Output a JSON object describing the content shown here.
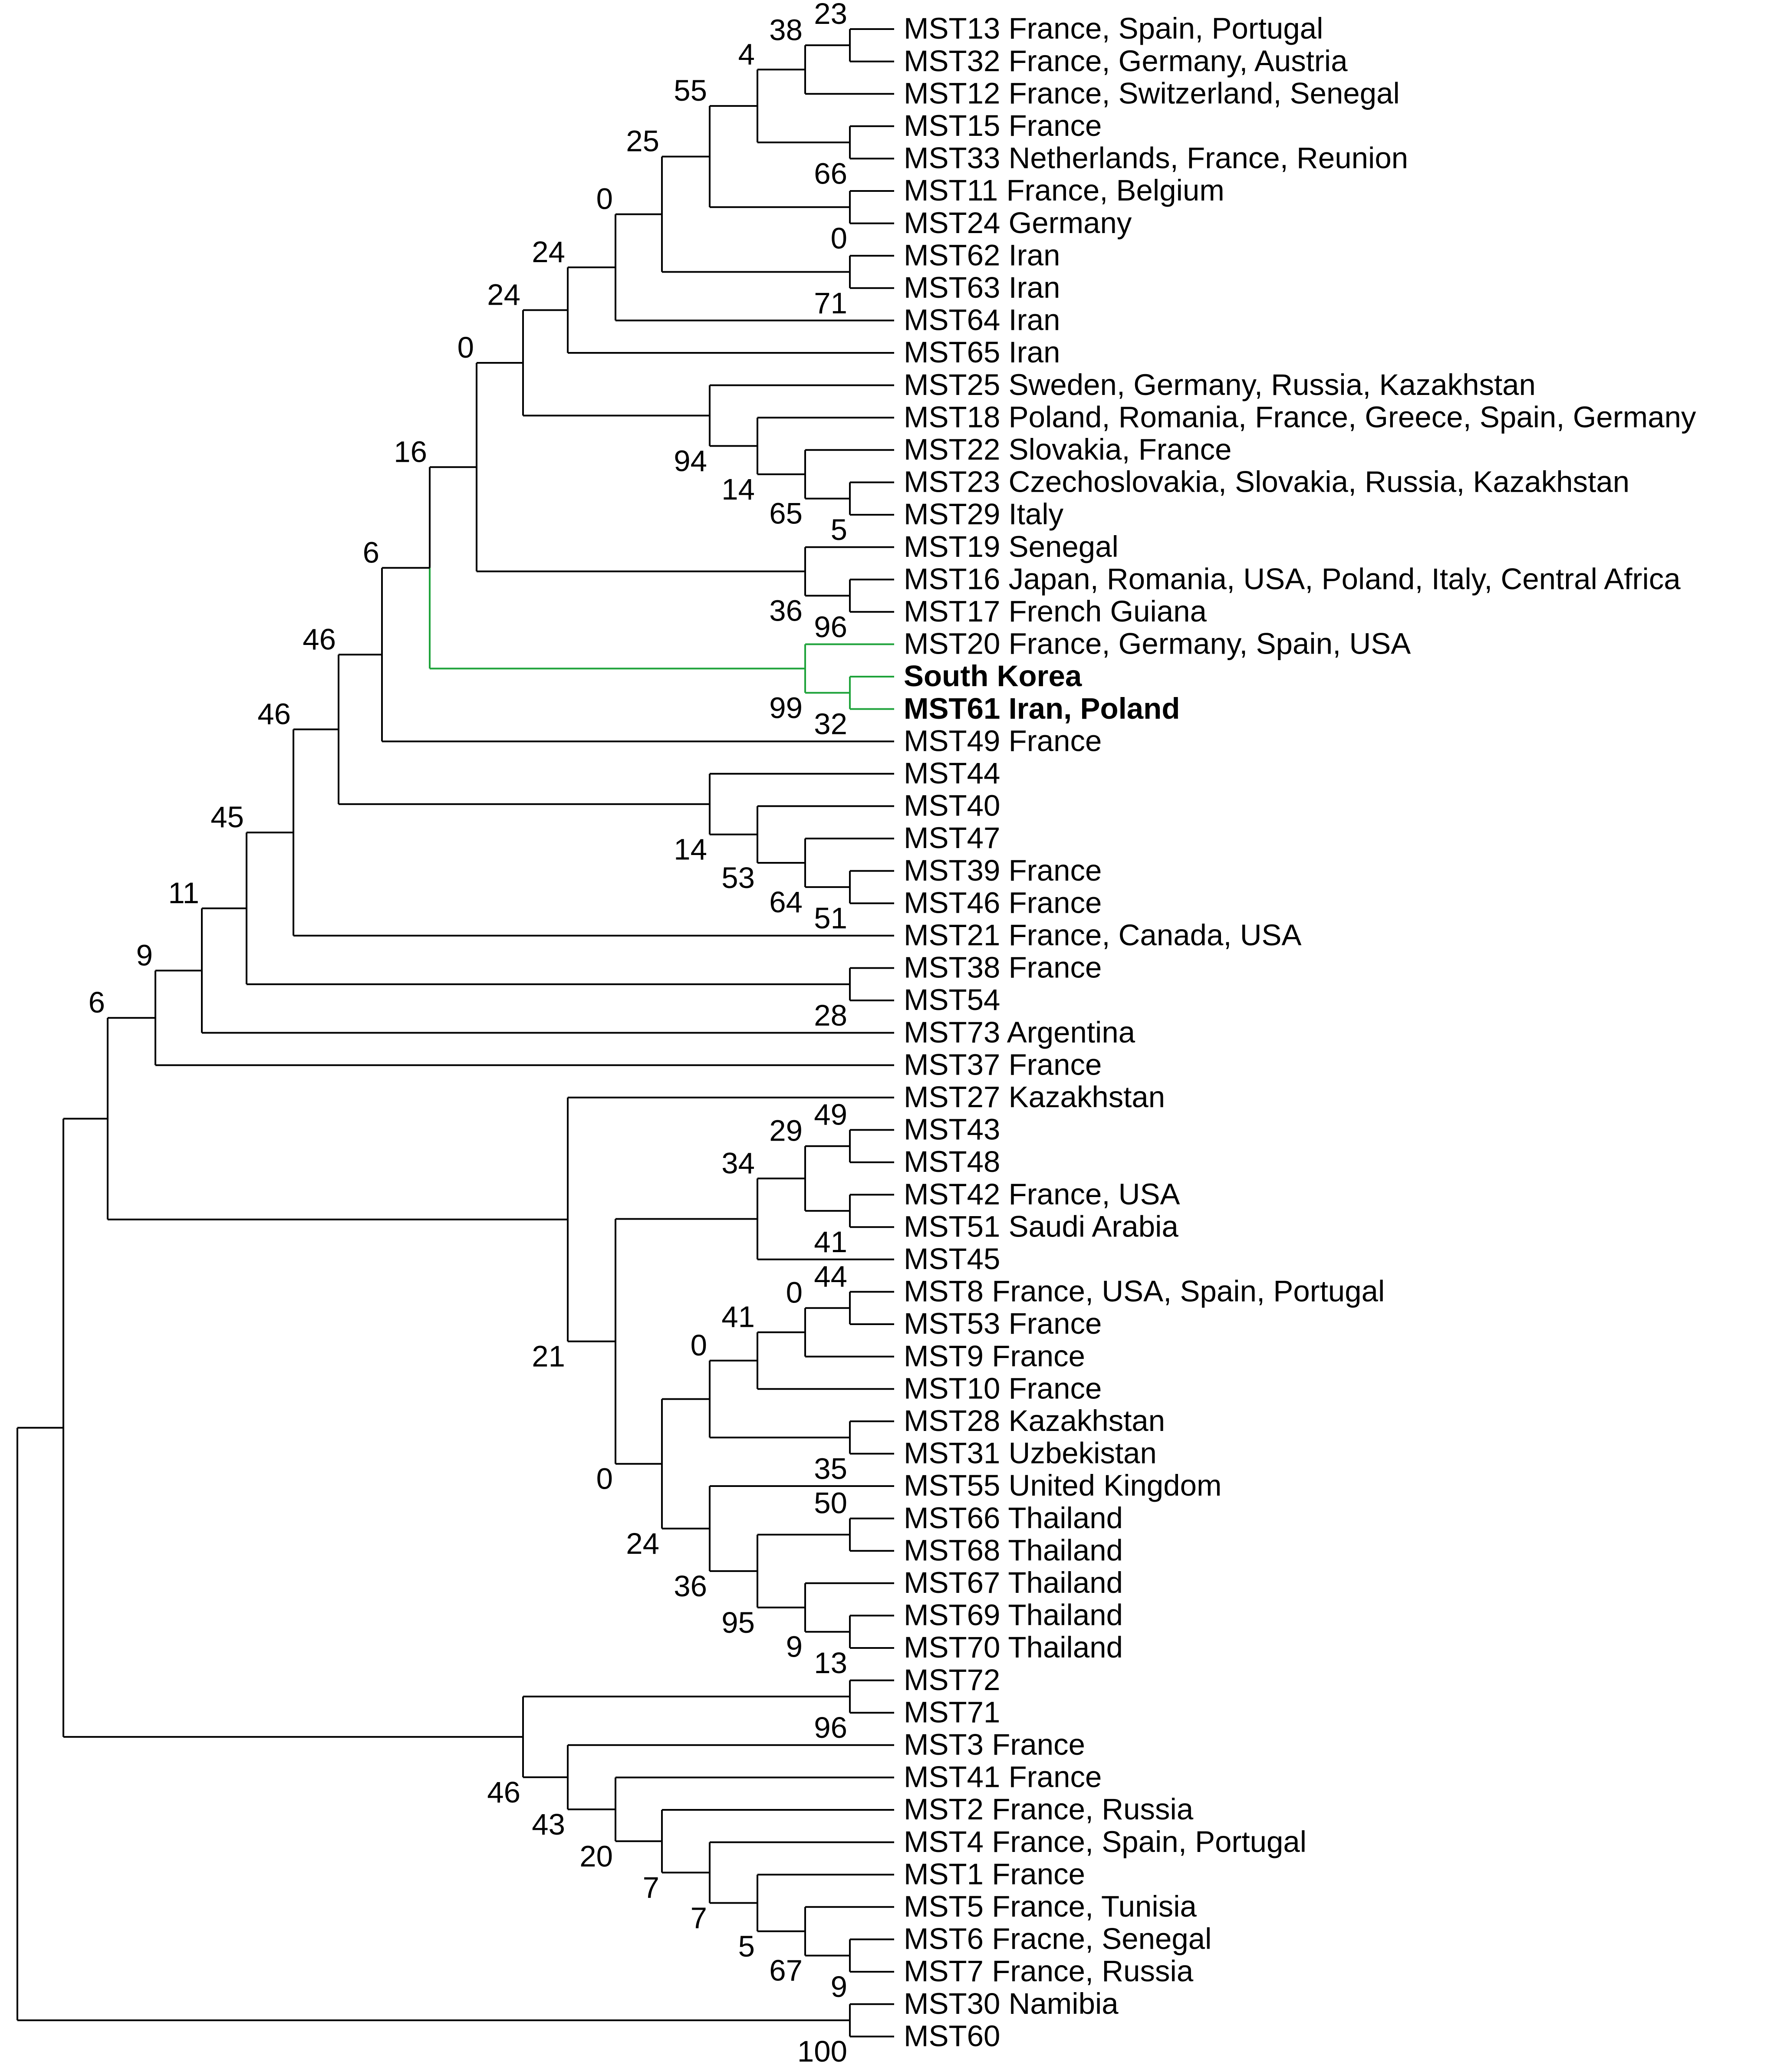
{
  "colors": {
    "branch": "#000000",
    "highlight_branch": "#1fa33b",
    "highlight_label": "#ff0000",
    "background": "#ffffff"
  },
  "tree": {
    "tips": [
      {
        "id": "MST13",
        "label": "MST13 France, Spain, Portugal"
      },
      {
        "id": "MST32",
        "label": "MST32 France, Germany, Austria"
      },
      {
        "id": "MST12",
        "label": "MST12 France, Switzerland, Senegal"
      },
      {
        "id": "MST15",
        "label": "MST15 France"
      },
      {
        "id": "MST33",
        "label": "MST33 Netherlands, France, Reunion"
      },
      {
        "id": "MST11",
        "label": "MST11 France, Belgium"
      },
      {
        "id": "MST24",
        "label": "MST24 Germany"
      },
      {
        "id": "MST62",
        "label": "MST62 Iran"
      },
      {
        "id": "MST63",
        "label": "MST63 Iran"
      },
      {
        "id": "MST64",
        "label": "MST64 Iran"
      },
      {
        "id": "MST65",
        "label": "MST65 Iran"
      },
      {
        "id": "MST25",
        "label": "MST25 Sweden, Germany, Russia, Kazakhstan"
      },
      {
        "id": "MST18",
        "label": "MST18 Poland, Romania, France, Greece, Spain, Germany"
      },
      {
        "id": "MST22",
        "label": "MST22 Slovakia, France"
      },
      {
        "id": "MST23",
        "label": "MST23 Czechoslovakia, Slovakia,  Russia, Kazakhstan"
      },
      {
        "id": "MST29",
        "label": "MST29 Italy"
      },
      {
        "id": "MST19",
        "label": "MST19 Senegal"
      },
      {
        "id": "MST16",
        "label": "MST16 Japan, Romania, USA, Poland, Italy, Central Africa"
      },
      {
        "id": "MST17",
        "label": "MST17 French Guiana"
      },
      {
        "id": "MST20",
        "label": "MST20 France, Germany, Spain, USA"
      },
      {
        "id": "SK",
        "label": "South Korea",
        "color": "#ff0000",
        "bold": true
      },
      {
        "id": "MST61",
        "label": "MST61 Iran, Poland",
        "bold": true
      },
      {
        "id": "MST49",
        "label": "MST49 France"
      },
      {
        "id": "MST44",
        "label": "MST44"
      },
      {
        "id": "MST40",
        "label": "MST40"
      },
      {
        "id": "MST47",
        "label": "MST47"
      },
      {
        "id": "MST39",
        "label": "MST39 France"
      },
      {
        "id": "MST46",
        "label": "MST46 France"
      },
      {
        "id": "MST21",
        "label": "MST21 France, Canada, USA"
      },
      {
        "id": "MST38",
        "label": "MST38 France"
      },
      {
        "id": "MST54",
        "label": "MST54"
      },
      {
        "id": "MST73",
        "label": "MST73 Argentina"
      },
      {
        "id": "MST37",
        "label": "MST37 France"
      },
      {
        "id": "MST27",
        "label": "MST27 Kazakhstan"
      },
      {
        "id": "MST43",
        "label": "MST43"
      },
      {
        "id": "MST48",
        "label": "MST48"
      },
      {
        "id": "MST42",
        "label": "MST42 France, USA"
      },
      {
        "id": "MST51",
        "label": "MST51 Saudi Arabia"
      },
      {
        "id": "MST45",
        "label": "MST45"
      },
      {
        "id": "MST8",
        "label": "MST8 France, USA, Spain, Portugal"
      },
      {
        "id": "MST53",
        "label": "MST53 France"
      },
      {
        "id": "MST9",
        "label": "MST9 France"
      },
      {
        "id": "MST10",
        "label": "MST10 France"
      },
      {
        "id": "MST28",
        "label": "MST28 Kazakhstan"
      },
      {
        "id": "MST31",
        "label": "MST31 Uzbekistan"
      },
      {
        "id": "MST55",
        "label": "MST55 United Kingdom"
      },
      {
        "id": "MST66",
        "label": "MST66 Thailand"
      },
      {
        "id": "MST68",
        "label": "MST68 Thailand"
      },
      {
        "id": "MST67",
        "label": "MST67 Thailand"
      },
      {
        "id": "MST69",
        "label": "MST69 Thailand"
      },
      {
        "id": "MST70",
        "label": "MST70 Thailand"
      },
      {
        "id": "MST72",
        "label": "MST72"
      },
      {
        "id": "MST71",
        "label": "MST71"
      },
      {
        "id": "MST3",
        "label": "MST3 France"
      },
      {
        "id": "MST41",
        "label": "MST41 France"
      },
      {
        "id": "MST2",
        "label": "MST2 France, Russia"
      },
      {
        "id": "MST4",
        "label": "MST4 France, Spain, Portugal"
      },
      {
        "id": "MST1",
        "label": "MST1 France"
      },
      {
        "id": "MST5",
        "label": "MST5 France, Tunisia"
      },
      {
        "id": "MST6",
        "label": "MST6 Fracne, Senegal"
      },
      {
        "id": "MST7",
        "label": "MST7 France, Russia"
      },
      {
        "id": "MST30",
        "label": "MST30 Namibia"
      },
      {
        "id": "MST60",
        "label": "MST60"
      }
    ],
    "nodes": [
      {
        "id": "n23",
        "c": [
          "MST13",
          "MST32"
        ],
        "s": "23",
        "pos": "top"
      },
      {
        "id": "n38",
        "c": [
          "n23",
          "MST12"
        ],
        "s": "38",
        "pos": "top"
      },
      {
        "id": "n66",
        "c": [
          "MST15",
          "MST33"
        ],
        "s": "66",
        "pos": "bottom"
      },
      {
        "id": "n4",
        "c": [
          "n38",
          "n66"
        ],
        "s": "4",
        "pos": "top"
      },
      {
        "id": "n0a",
        "c": [
          "MST11",
          "MST24"
        ],
        "s": "0",
        "pos": "bottom"
      },
      {
        "id": "n55",
        "c": [
          "n4",
          "n0a"
        ],
        "s": "55",
        "pos": "top"
      },
      {
        "id": "n71",
        "c": [
          "MST62",
          "MST63"
        ],
        "s": "71",
        "pos": "bottom"
      },
      {
        "id": "n25",
        "c": [
          "n55",
          "n71"
        ],
        "s": "25",
        "pos": "top"
      },
      {
        "id": "n0b",
        "c": [
          "n25",
          "MST64"
        ],
        "s": "0",
        "pos": "top"
      },
      {
        "id": "n24a",
        "c": [
          "n0b",
          "MST65"
        ],
        "s": "24",
        "pos": "top"
      },
      {
        "id": "n5",
        "c": [
          "MST23",
          "MST29"
        ],
        "s": "5",
        "pos": "bottom"
      },
      {
        "id": "n65",
        "c": [
          "MST22",
          "n5"
        ],
        "s": "65",
        "pos": "bottom"
      },
      {
        "id": "n14a",
        "c": [
          "MST18",
          "n65"
        ],
        "s": "14",
        "pos": "bottom"
      },
      {
        "id": "n94",
        "c": [
          "MST25",
          "n14a"
        ],
        "s": "94",
        "pos": "bottom"
      },
      {
        "id": "n24b",
        "c": [
          "n24a",
          "n94"
        ],
        "s": "24",
        "pos": "top"
      },
      {
        "id": "n96a",
        "c": [
          "MST16",
          "MST17"
        ],
        "s": "96",
        "pos": "bottom"
      },
      {
        "id": "n36a",
        "c": [
          "MST19",
          "n96a"
        ],
        "s": "36",
        "pos": "bottom"
      },
      {
        "id": "n0c",
        "c": [
          "n24b",
          "n36a"
        ],
        "s": "0",
        "pos": "top"
      },
      {
        "id": "n32",
        "c": [
          "SK",
          "MST61"
        ],
        "s": "32",
        "pos": "bottom",
        "hl": true
      },
      {
        "id": "n99",
        "c": [
          "MST20",
          "n32"
        ],
        "s": "99",
        "pos": "bottom",
        "hl": true
      },
      {
        "id": "n16",
        "c": [
          "n0c",
          "n99"
        ],
        "s": "16",
        "pos": "top",
        "hl2": true
      },
      {
        "id": "n6a",
        "c": [
          "n16",
          "MST49"
        ],
        "s": "6",
        "pos": "top"
      },
      {
        "id": "n51",
        "c": [
          "MST39",
          "MST46"
        ],
        "s": "51",
        "pos": "bottom"
      },
      {
        "id": "n64",
        "c": [
          "MST47",
          "n51"
        ],
        "s": "64",
        "pos": "bottom"
      },
      {
        "id": "n53",
        "c": [
          "MST40",
          "n64"
        ],
        "s": "53",
        "pos": "bottom"
      },
      {
        "id": "n14b",
        "c": [
          "MST44",
          "n53"
        ],
        "s": "14",
        "pos": "bottom"
      },
      {
        "id": "n46a",
        "c": [
          "n6a",
          "n14b"
        ],
        "s": "46",
        "pos": "top"
      },
      {
        "id": "n46b",
        "c": [
          "n46a",
          "MST21"
        ],
        "s": "46",
        "pos": "top"
      },
      {
        "id": "n28",
        "c": [
          "MST38",
          "MST54"
        ],
        "s": "28",
        "pos": "bottom"
      },
      {
        "id": "n45",
        "c": [
          "n46b",
          "n28"
        ],
        "s": "45",
        "pos": "top"
      },
      {
        "id": "n11",
        "c": [
          "n45",
          "MST73"
        ],
        "s": "11",
        "pos": "top"
      },
      {
        "id": "n9a",
        "c": [
          "n11",
          "MST37"
        ],
        "s": "9",
        "pos": "top"
      },
      {
        "id": "n49",
        "c": [
          "MST43",
          "MST48"
        ],
        "s": "49",
        "pos": "top"
      },
      {
        "id": "n41a",
        "c": [
          "MST42",
          "MST51"
        ],
        "s": "41",
        "pos": "bottom"
      },
      {
        "id": "n29",
        "c": [
          "n49",
          "n41a"
        ],
        "s": "29",
        "pos": "top"
      },
      {
        "id": "n34",
        "c": [
          "n29",
          "MST45"
        ],
        "s": "34",
        "pos": "top"
      },
      {
        "id": "n44",
        "c": [
          "MST8",
          "MST53"
        ],
        "s": "44",
        "pos": "top"
      },
      {
        "id": "n0d",
        "c": [
          "n44",
          "MST9"
        ],
        "s": "0",
        "pos": "top"
      },
      {
        "id": "n41b",
        "c": [
          "n0d",
          "MST10"
        ],
        "s": "41",
        "pos": "top"
      },
      {
        "id": "n35",
        "c": [
          "MST28",
          "MST31"
        ],
        "s": "35",
        "pos": "bottom"
      },
      {
        "id": "n0e",
        "c": [
          "n41b",
          "n35"
        ],
        "s": "0",
        "pos": "top"
      },
      {
        "id": "n50",
        "c": [
          "MST66",
          "MST68"
        ],
        "s": "50",
        "pos": "top"
      },
      {
        "id": "n13",
        "c": [
          "MST69",
          "MST70"
        ],
        "s": "13",
        "pos": "bottom"
      },
      {
        "id": "n9b",
        "c": [
          "MST67",
          "n13"
        ],
        "s": "9",
        "pos": "bottom"
      },
      {
        "id": "n95",
        "c": [
          "n50",
          "n9b"
        ],
        "s": "95",
        "pos": "bottom"
      },
      {
        "id": "n36b",
        "c": [
          "MST55",
          "n95"
        ],
        "s": "36",
        "pos": "bottom"
      },
      {
        "id": "n24c",
        "c": [
          "n0e",
          "n36b"
        ],
        "s": "24",
        "pos": "bottom"
      },
      {
        "id": "n0f",
        "c": [
          "n34",
          "n24c"
        ],
        "s": "0",
        "pos": "bottom"
      },
      {
        "id": "n21",
        "c": [
          "MST27",
          "n0f"
        ],
        "s": "21",
        "pos": "bottom"
      },
      {
        "id": "n6b",
        "c": [
          "n9a",
          "n21"
        ],
        "s": "6",
        "pos": "top"
      },
      {
        "id": "n96b",
        "c": [
          "MST72",
          "MST71"
        ],
        "s": "96",
        "pos": "bottom"
      },
      {
        "id": "n9c",
        "c": [
          "MST6",
          "MST7"
        ],
        "s": "9",
        "pos": "bottom"
      },
      {
        "id": "n67",
        "c": [
          "MST5",
          "n9c"
        ],
        "s": "67",
        "pos": "bottom"
      },
      {
        "id": "n5b",
        "c": [
          "MST1",
          "n67"
        ],
        "s": "5",
        "pos": "bottom"
      },
      {
        "id": "n7a",
        "c": [
          "MST4",
          "n5b"
        ],
        "s": "7",
        "pos": "bottom"
      },
      {
        "id": "n7b",
        "c": [
          "MST2",
          "n7a"
        ],
        "s": "7",
        "pos": "bottom"
      },
      {
        "id": "n20",
        "c": [
          "MST41",
          "n7b"
        ],
        "s": "20",
        "pos": "bottom"
      },
      {
        "id": "n43",
        "c": [
          "MST3",
          "n20"
        ],
        "s": "43",
        "pos": "bottom"
      },
      {
        "id": "n46c",
        "c": [
          "n96b",
          "n43"
        ],
        "s": "46",
        "pos": "bottom"
      },
      {
        "id": "nA",
        "c": [
          "n6b",
          "n46c"
        ],
        "s": null
      },
      {
        "id": "n100",
        "c": [
          "MST30",
          "MST60"
        ],
        "s": "100",
        "pos": "bottom"
      },
      {
        "id": "root",
        "c": [
          "nA",
          "n100"
        ],
        "s": null
      }
    ]
  }
}
